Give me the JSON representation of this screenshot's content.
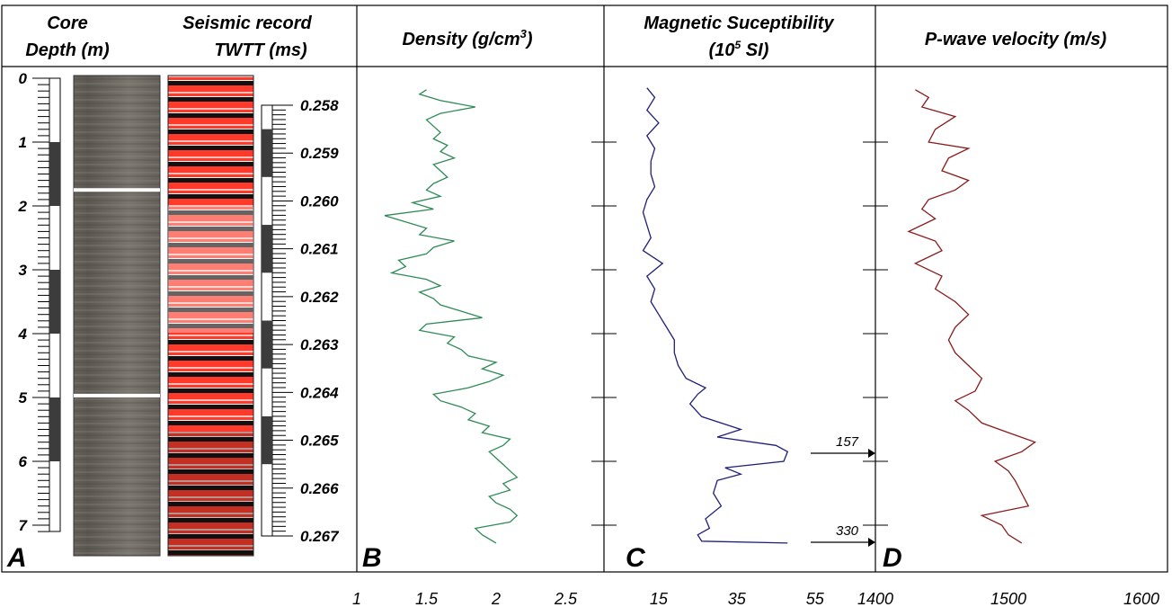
{
  "headers": {
    "core": {
      "line1": "Core",
      "line2": "Depth (m)"
    },
    "seismic": {
      "line1": "Seismic record",
      "line2": "TWTT (ms)"
    },
    "density": {
      "text": "Density (g/cm",
      "sup": "3",
      "tail": ")"
    },
    "magnetic": {
      "line1": "Magnetic Suceptibility",
      "l2a": "(10",
      "l2sup": "5",
      "l2b": " SI)"
    },
    "pwave": {
      "text": "P-wave velocity (m/s)"
    }
  },
  "panel_labels": [
    "A",
    "B",
    "C",
    "D"
  ],
  "annotations": {
    "arrow_upper": "157",
    "arrow_lower": "330"
  },
  "colors": {
    "density": "#2e8b57",
    "magnetic": "#1f1f7a",
    "pwave": "#8b1a1a",
    "seismic_red": "#ff3a2a",
    "bar_dark": "#3c3c3c"
  },
  "chart_data": [
    {
      "type": "table",
      "title": "Core Depth (m)",
      "depth_ticks": [
        "0",
        "1",
        "2",
        "3",
        "4",
        "5",
        "6",
        "7"
      ],
      "ylim": [
        0,
        7.3
      ],
      "white_marker_depths_m": [
        1.75,
        4.97
      ]
    },
    {
      "type": "table",
      "title": "Seismic record TWTT (ms)",
      "twtt_ticks": [
        "0.258",
        "0.259",
        "0.260",
        "0.261",
        "0.262",
        "0.263",
        "0.264",
        "0.265",
        "0.266",
        "0.267"
      ]
    },
    {
      "type": "line",
      "title": "Density (g/cm3)",
      "xlabel": "",
      "xticks": [
        "1",
        "1.5",
        "2",
        "2.5"
      ],
      "xlim": [
        1,
        2.6
      ],
      "ylim": [
        0,
        7.3
      ],
      "series": [
        {
          "depth": [
            0.18,
            0.25,
            0.35,
            0.45,
            0.55,
            0.65,
            0.75,
            0.85,
            0.95,
            1.05,
            1.15,
            1.25,
            1.35,
            1.45,
            1.55,
            1.65,
            1.75,
            1.85,
            1.95,
            2.05,
            2.15,
            2.25,
            2.35,
            2.45,
            2.55,
            2.65,
            2.75,
            2.85,
            2.95,
            3.05,
            3.15,
            3.25,
            3.35,
            3.45,
            3.55,
            3.65,
            3.75,
            3.85,
            3.95,
            4.05,
            4.15,
            4.25,
            4.35,
            4.45,
            4.55,
            4.65,
            4.75,
            4.85,
            4.95,
            5.05,
            5.15,
            5.25,
            5.35,
            5.45,
            5.55,
            5.65,
            5.75,
            5.85,
            5.95,
            6.05,
            6.15,
            6.25,
            6.35,
            6.45,
            6.55,
            6.65,
            6.75,
            6.85,
            6.95,
            7.05,
            7.15,
            7.28
          ],
          "values": [
            1.5,
            1.45,
            1.6,
            1.85,
            1.6,
            1.5,
            1.55,
            1.6,
            1.55,
            1.65,
            1.6,
            1.7,
            1.55,
            1.6,
            1.65,
            1.55,
            1.5,
            1.6,
            1.4,
            1.55,
            1.2,
            1.35,
            1.5,
            1.45,
            1.7,
            1.55,
            1.5,
            1.3,
            1.35,
            1.25,
            1.5,
            1.6,
            1.45,
            1.55,
            1.6,
            1.75,
            1.9,
            1.5,
            1.45,
            1.7,
            1.65,
            1.75,
            1.8,
            2.0,
            1.9,
            2.05,
            1.95,
            1.8,
            1.55,
            1.6,
            1.75,
            1.85,
            1.8,
            1.95,
            1.9,
            2.1,
            2.05,
            1.95,
            2.0,
            2.05,
            2.1,
            2.15,
            2.05,
            2.1,
            1.95,
            2.0,
            2.1,
            2.15,
            2.1,
            1.85,
            1.9,
            2.0
          ]
        }
      ]
    },
    {
      "type": "line",
      "title": "Magnetic Suceptibility (10^5 SI)",
      "xlabel": "",
      "xticks": [
        "15",
        "35",
        "55"
      ],
      "xlim": [
        1,
        70
      ],
      "ylim": [
        0,
        7.3
      ],
      "series": [
        {
          "depth": [
            0.15,
            0.3,
            0.5,
            0.7,
            0.9,
            1.1,
            1.3,
            1.5,
            1.7,
            1.9,
            2.1,
            2.3,
            2.5,
            2.7,
            2.9,
            3.1,
            3.3,
            3.5,
            3.7,
            3.9,
            4.1,
            4.3,
            4.5,
            4.7,
            4.85,
            4.95,
            5.1,
            5.3,
            5.5,
            5.62,
            5.75,
            5.85,
            6.0,
            6.1,
            6.2,
            6.3,
            6.5,
            6.7,
            6.9,
            7.05,
            7.15,
            7.25,
            7.28
          ],
          "values": [
            12,
            14,
            12,
            15,
            12,
            14,
            13,
            13,
            14,
            12,
            11,
            12,
            13,
            11,
            16,
            12,
            14,
            13,
            15,
            17,
            19,
            19,
            20,
            22,
            27,
            25,
            23,
            26,
            36,
            30,
            45,
            48,
            47,
            32,
            36,
            30,
            29,
            31,
            27,
            28,
            25,
            26,
            48
          ]
        }
      ]
    },
    {
      "type": "line",
      "title": "P-wave velocity (m/s)",
      "xlabel": "",
      "xticks": [
        "1400",
        "1500",
        "1600"
      ],
      "xlim": [
        1400,
        1600
      ],
      "ylim": [
        0,
        7.3
      ],
      "series": [
        {
          "depth": [
            0.18,
            0.3,
            0.45,
            0.6,
            0.8,
            1.0,
            1.1,
            1.25,
            1.45,
            1.6,
            1.75,
            1.9,
            2.05,
            2.2,
            2.4,
            2.55,
            2.7,
            2.9,
            3.1,
            3.3,
            3.5,
            3.7,
            3.9,
            4.1,
            4.3,
            4.5,
            4.7,
            4.9,
            5.05,
            5.2,
            5.4,
            5.55,
            5.7,
            5.85,
            6.0,
            6.15,
            6.3,
            6.5,
            6.7,
            6.85,
            7.0,
            7.15,
            7.28
          ],
          "values": [
            1430,
            1440,
            1435,
            1460,
            1445,
            1440,
            1470,
            1455,
            1450,
            1470,
            1460,
            1440,
            1435,
            1445,
            1425,
            1445,
            1450,
            1430,
            1450,
            1445,
            1460,
            1470,
            1460,
            1455,
            1460,
            1470,
            1480,
            1475,
            1460,
            1470,
            1480,
            1500,
            1520,
            1510,
            1490,
            1500,
            1505,
            1510,
            1515,
            1480,
            1495,
            1500,
            1510
          ]
        }
      ]
    }
  ]
}
